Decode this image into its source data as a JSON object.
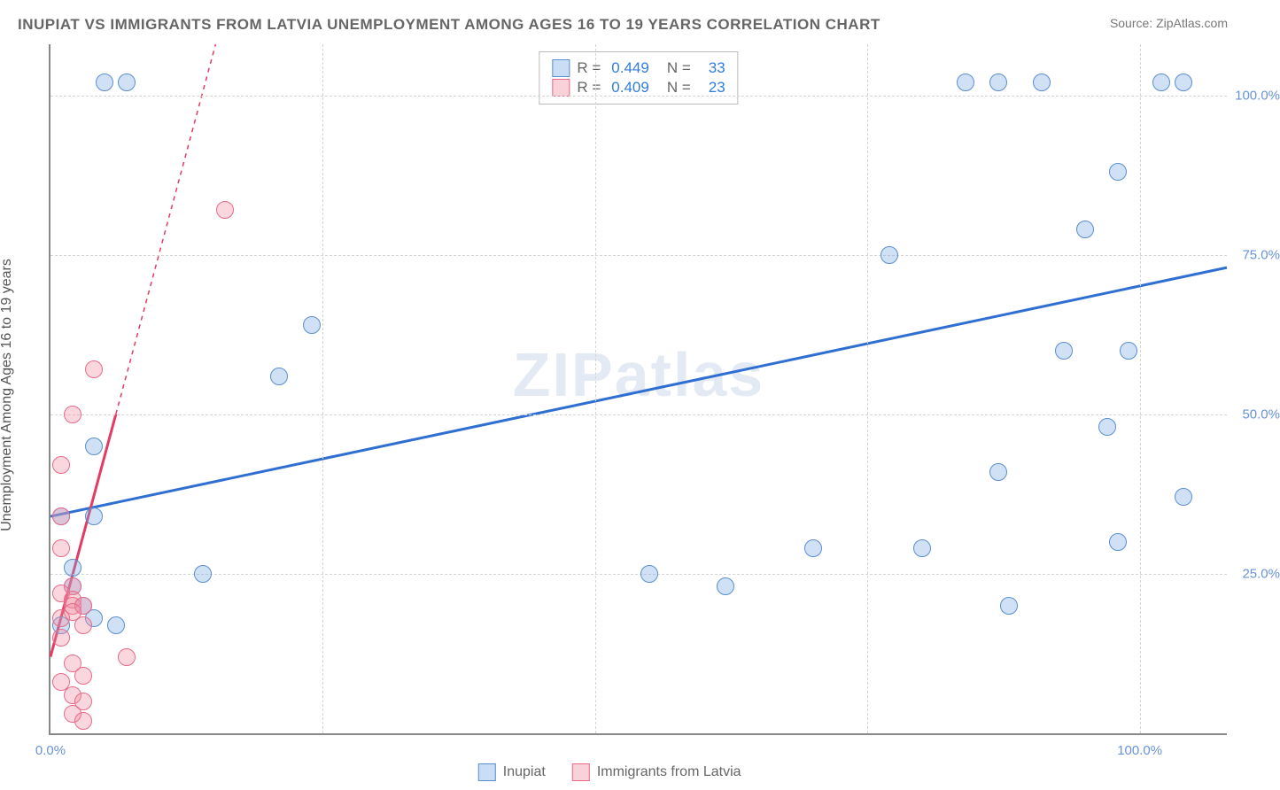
{
  "title": "INUPIAT VS IMMIGRANTS FROM LATVIA UNEMPLOYMENT AMONG AGES 16 TO 19 YEARS CORRELATION CHART",
  "source": "Source: ZipAtlas.com",
  "watermark": "ZIPatlas",
  "y_axis_label": "Unemployment Among Ages 16 to 19 years",
  "legend_bottom": {
    "series1": "Inupiat",
    "series2": "Immigrants from Latvia"
  },
  "stats": {
    "series1": {
      "r_value": "0.449",
      "n_value": "33"
    },
    "series2": {
      "r_value": "0.409",
      "n_value": "23"
    }
  },
  "chart": {
    "type": "scatter",
    "xlim": [
      0,
      108
    ],
    "ylim": [
      0,
      108
    ],
    "grid_color": "#d5d5d5",
    "background_color": "#ffffff",
    "x_ticks": [
      {
        "pos": 0,
        "label": "0.0%"
      },
      {
        "pos": 25,
        "label": ""
      },
      {
        "pos": 50,
        "label": ""
      },
      {
        "pos": 75,
        "label": ""
      },
      {
        "pos": 100,
        "label": "100.0%"
      }
    ],
    "y_ticks": [
      {
        "pos": 25,
        "label": "25.0%"
      },
      {
        "pos": 50,
        "label": "50.0%"
      },
      {
        "pos": 75,
        "label": "75.0%"
      },
      {
        "pos": 100,
        "label": "100.0%"
      }
    ],
    "marker_radius": 10,
    "series": [
      {
        "name": "Inupiat",
        "color": "#5b8fd0",
        "fill": "rgba(120,170,230,0.35)",
        "points": [
          [
            5,
            102
          ],
          [
            7,
            102
          ],
          [
            84,
            102
          ],
          [
            87,
            102
          ],
          [
            91,
            102
          ],
          [
            102,
            102
          ],
          [
            104,
            102
          ],
          [
            98,
            88
          ],
          [
            95,
            79
          ],
          [
            77,
            75
          ],
          [
            24,
            64
          ],
          [
            21,
            56
          ],
          [
            93,
            60
          ],
          [
            99,
            60
          ],
          [
            4,
            45
          ],
          [
            97,
            48
          ],
          [
            1,
            34
          ],
          [
            4,
            34
          ],
          [
            87,
            41
          ],
          [
            104,
            37
          ],
          [
            98,
            30
          ],
          [
            14,
            25
          ],
          [
            70,
            29
          ],
          [
            80,
            29
          ],
          [
            2,
            26
          ],
          [
            55,
            25
          ],
          [
            62,
            23
          ],
          [
            88,
            20
          ],
          [
            2,
            23
          ],
          [
            3,
            20
          ],
          [
            4,
            18
          ],
          [
            6,
            17
          ],
          [
            1,
            17
          ]
        ],
        "trend": {
          "x1": 0,
          "y1": 34,
          "x2": 108,
          "y2": 73,
          "stroke": "#2f6fd1",
          "width": 3,
          "dash": ""
        }
      },
      {
        "name": "Immigrants from Latvia",
        "color": "#e86b8a",
        "fill": "rgba(240,140,160,0.35)",
        "points": [
          [
            16,
            82
          ],
          [
            4,
            57
          ],
          [
            2,
            50
          ],
          [
            1,
            42
          ],
          [
            1,
            34
          ],
          [
            1,
            29
          ],
          [
            2,
            23
          ],
          [
            1,
            22
          ],
          [
            2,
            21
          ],
          [
            2,
            20
          ],
          [
            3,
            20
          ],
          [
            2,
            19
          ],
          [
            1,
            18
          ],
          [
            3,
            17
          ],
          [
            1,
            15
          ],
          [
            7,
            12
          ],
          [
            2,
            11
          ],
          [
            3,
            9
          ],
          [
            1,
            8
          ],
          [
            2,
            6
          ],
          [
            3,
            5
          ],
          [
            2,
            3
          ],
          [
            3,
            2
          ]
        ],
        "trend": {
          "x1": 0,
          "y1": 12,
          "x2": 6,
          "y2": 50,
          "stroke": "#e33b62",
          "width": 3,
          "dash": "",
          "ext_x1": 6,
          "ext_y1": 50,
          "ext_x2": 21,
          "ext_y2": 145,
          "ext_dash": "5,5"
        }
      }
    ]
  }
}
